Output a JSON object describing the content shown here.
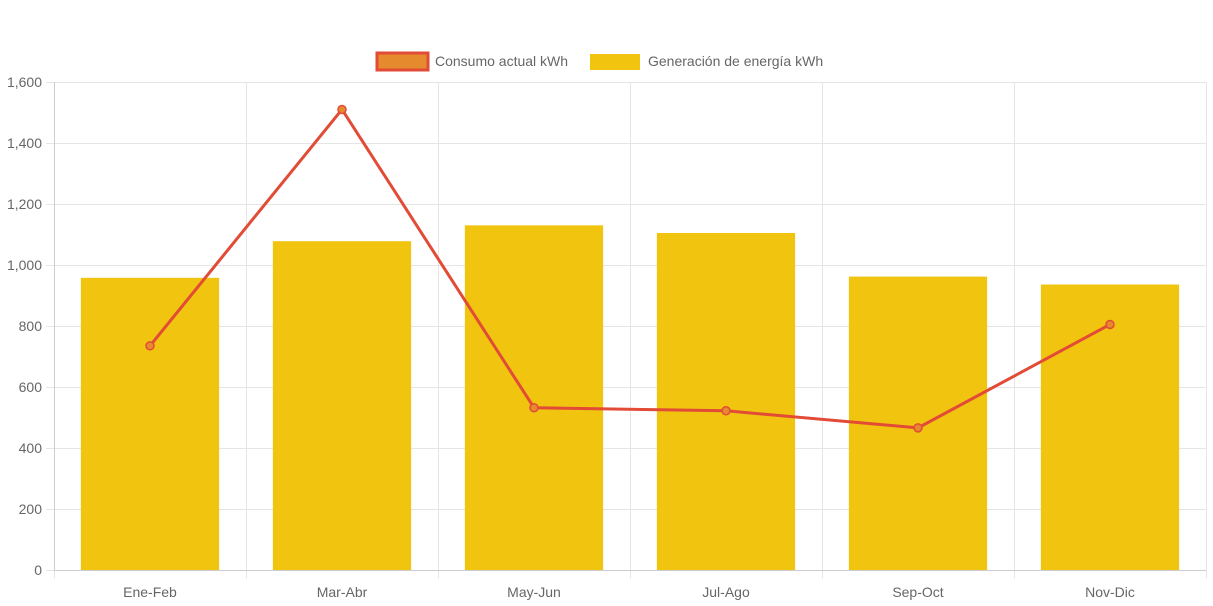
{
  "chart_data": {
    "type": "bar",
    "categories": [
      "Ene-Feb",
      "Mar-Abr",
      "May-Jun",
      "Jul-Ago",
      "Sep-Oct",
      "Nov-Dic"
    ],
    "series": [
      {
        "name": "Consumo actual kWh",
        "type": "line",
        "color": "#e24b36",
        "fill": "#e68a2e",
        "values": [
          735,
          1510,
          532,
          522,
          466,
          805
        ]
      },
      {
        "name": "Generación de energía kWh",
        "type": "bar",
        "color": "#f0c40f",
        "values": [
          958,
          1078,
          1130,
          1105,
          962,
          936
        ]
      }
    ],
    "ylim": [
      0,
      1600
    ],
    "yticks": [
      "0",
      "200",
      "400",
      "600",
      "800",
      "1,000",
      "1,200",
      "1,400",
      "1,600"
    ],
    "ytick_values": [
      0,
      200,
      400,
      600,
      800,
      1000,
      1200,
      1400,
      1600
    ],
    "grid": true,
    "legend_position": "top-center",
    "title": "",
    "xlabel": "",
    "ylabel": ""
  }
}
